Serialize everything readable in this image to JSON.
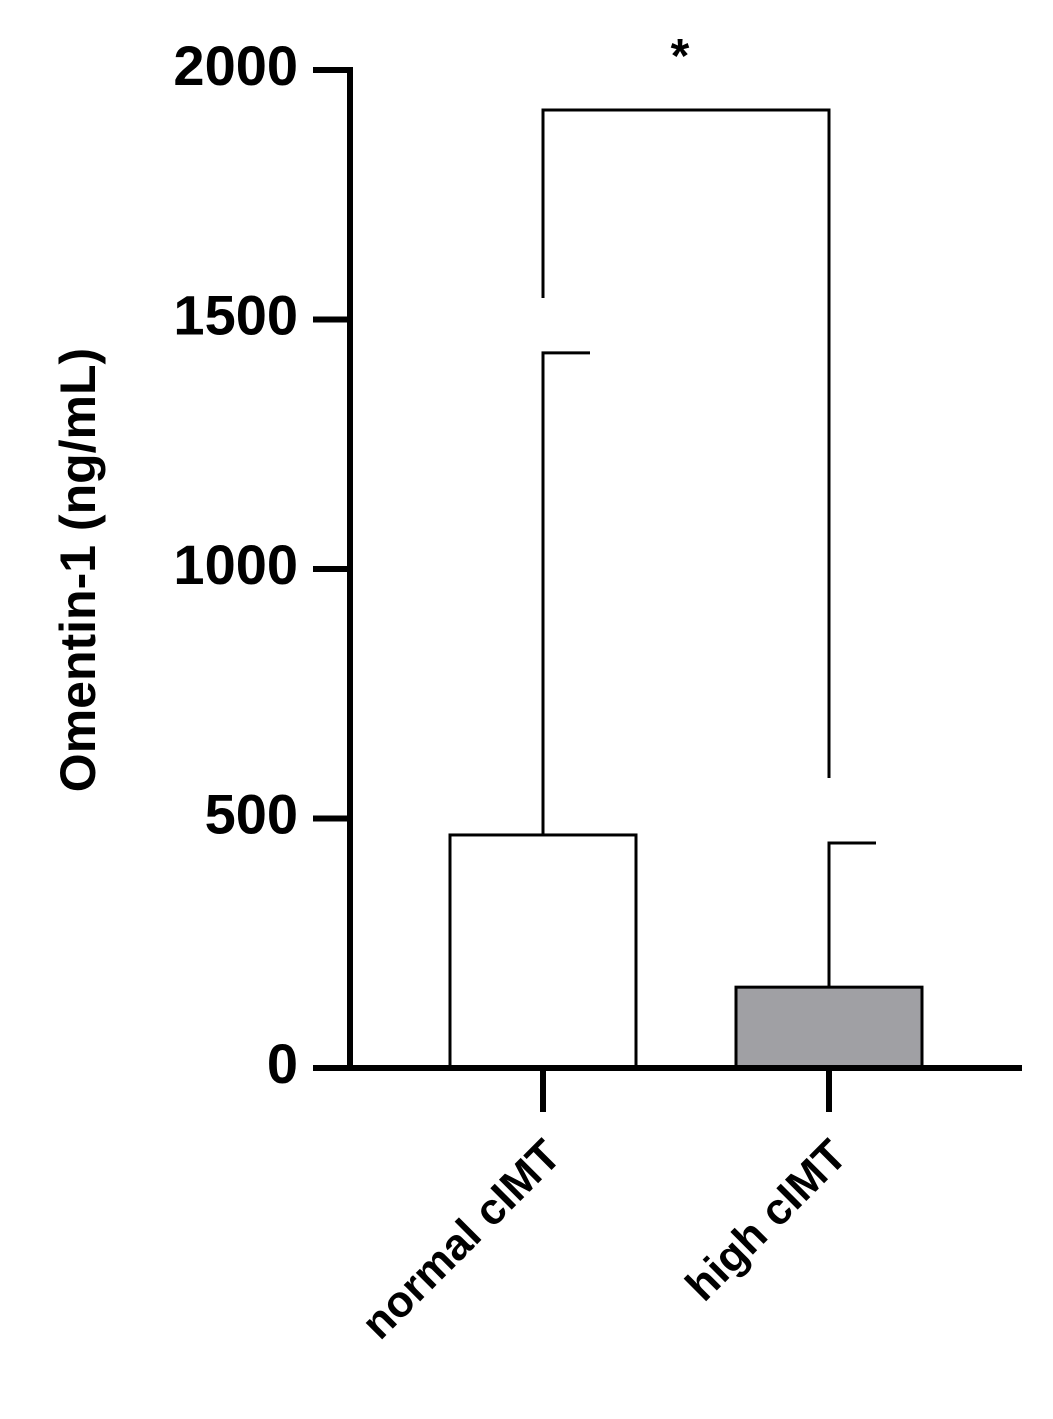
{
  "chart_data": {
    "type": "bar",
    "y_label": "Omentin-1  (ng/mL)",
    "categories": [
      "normal cIMT",
      "high cIMT"
    ],
    "values": [
      467,
      162
    ],
    "errors": [
      966,
      289
    ],
    "colors": [
      "#ffffff",
      "#a0a0a4"
    ],
    "ylim": [
      0,
      2000
    ],
    "yticks": [
      0,
      500,
      1000,
      1500,
      2000
    ],
    "annotation": "*"
  }
}
